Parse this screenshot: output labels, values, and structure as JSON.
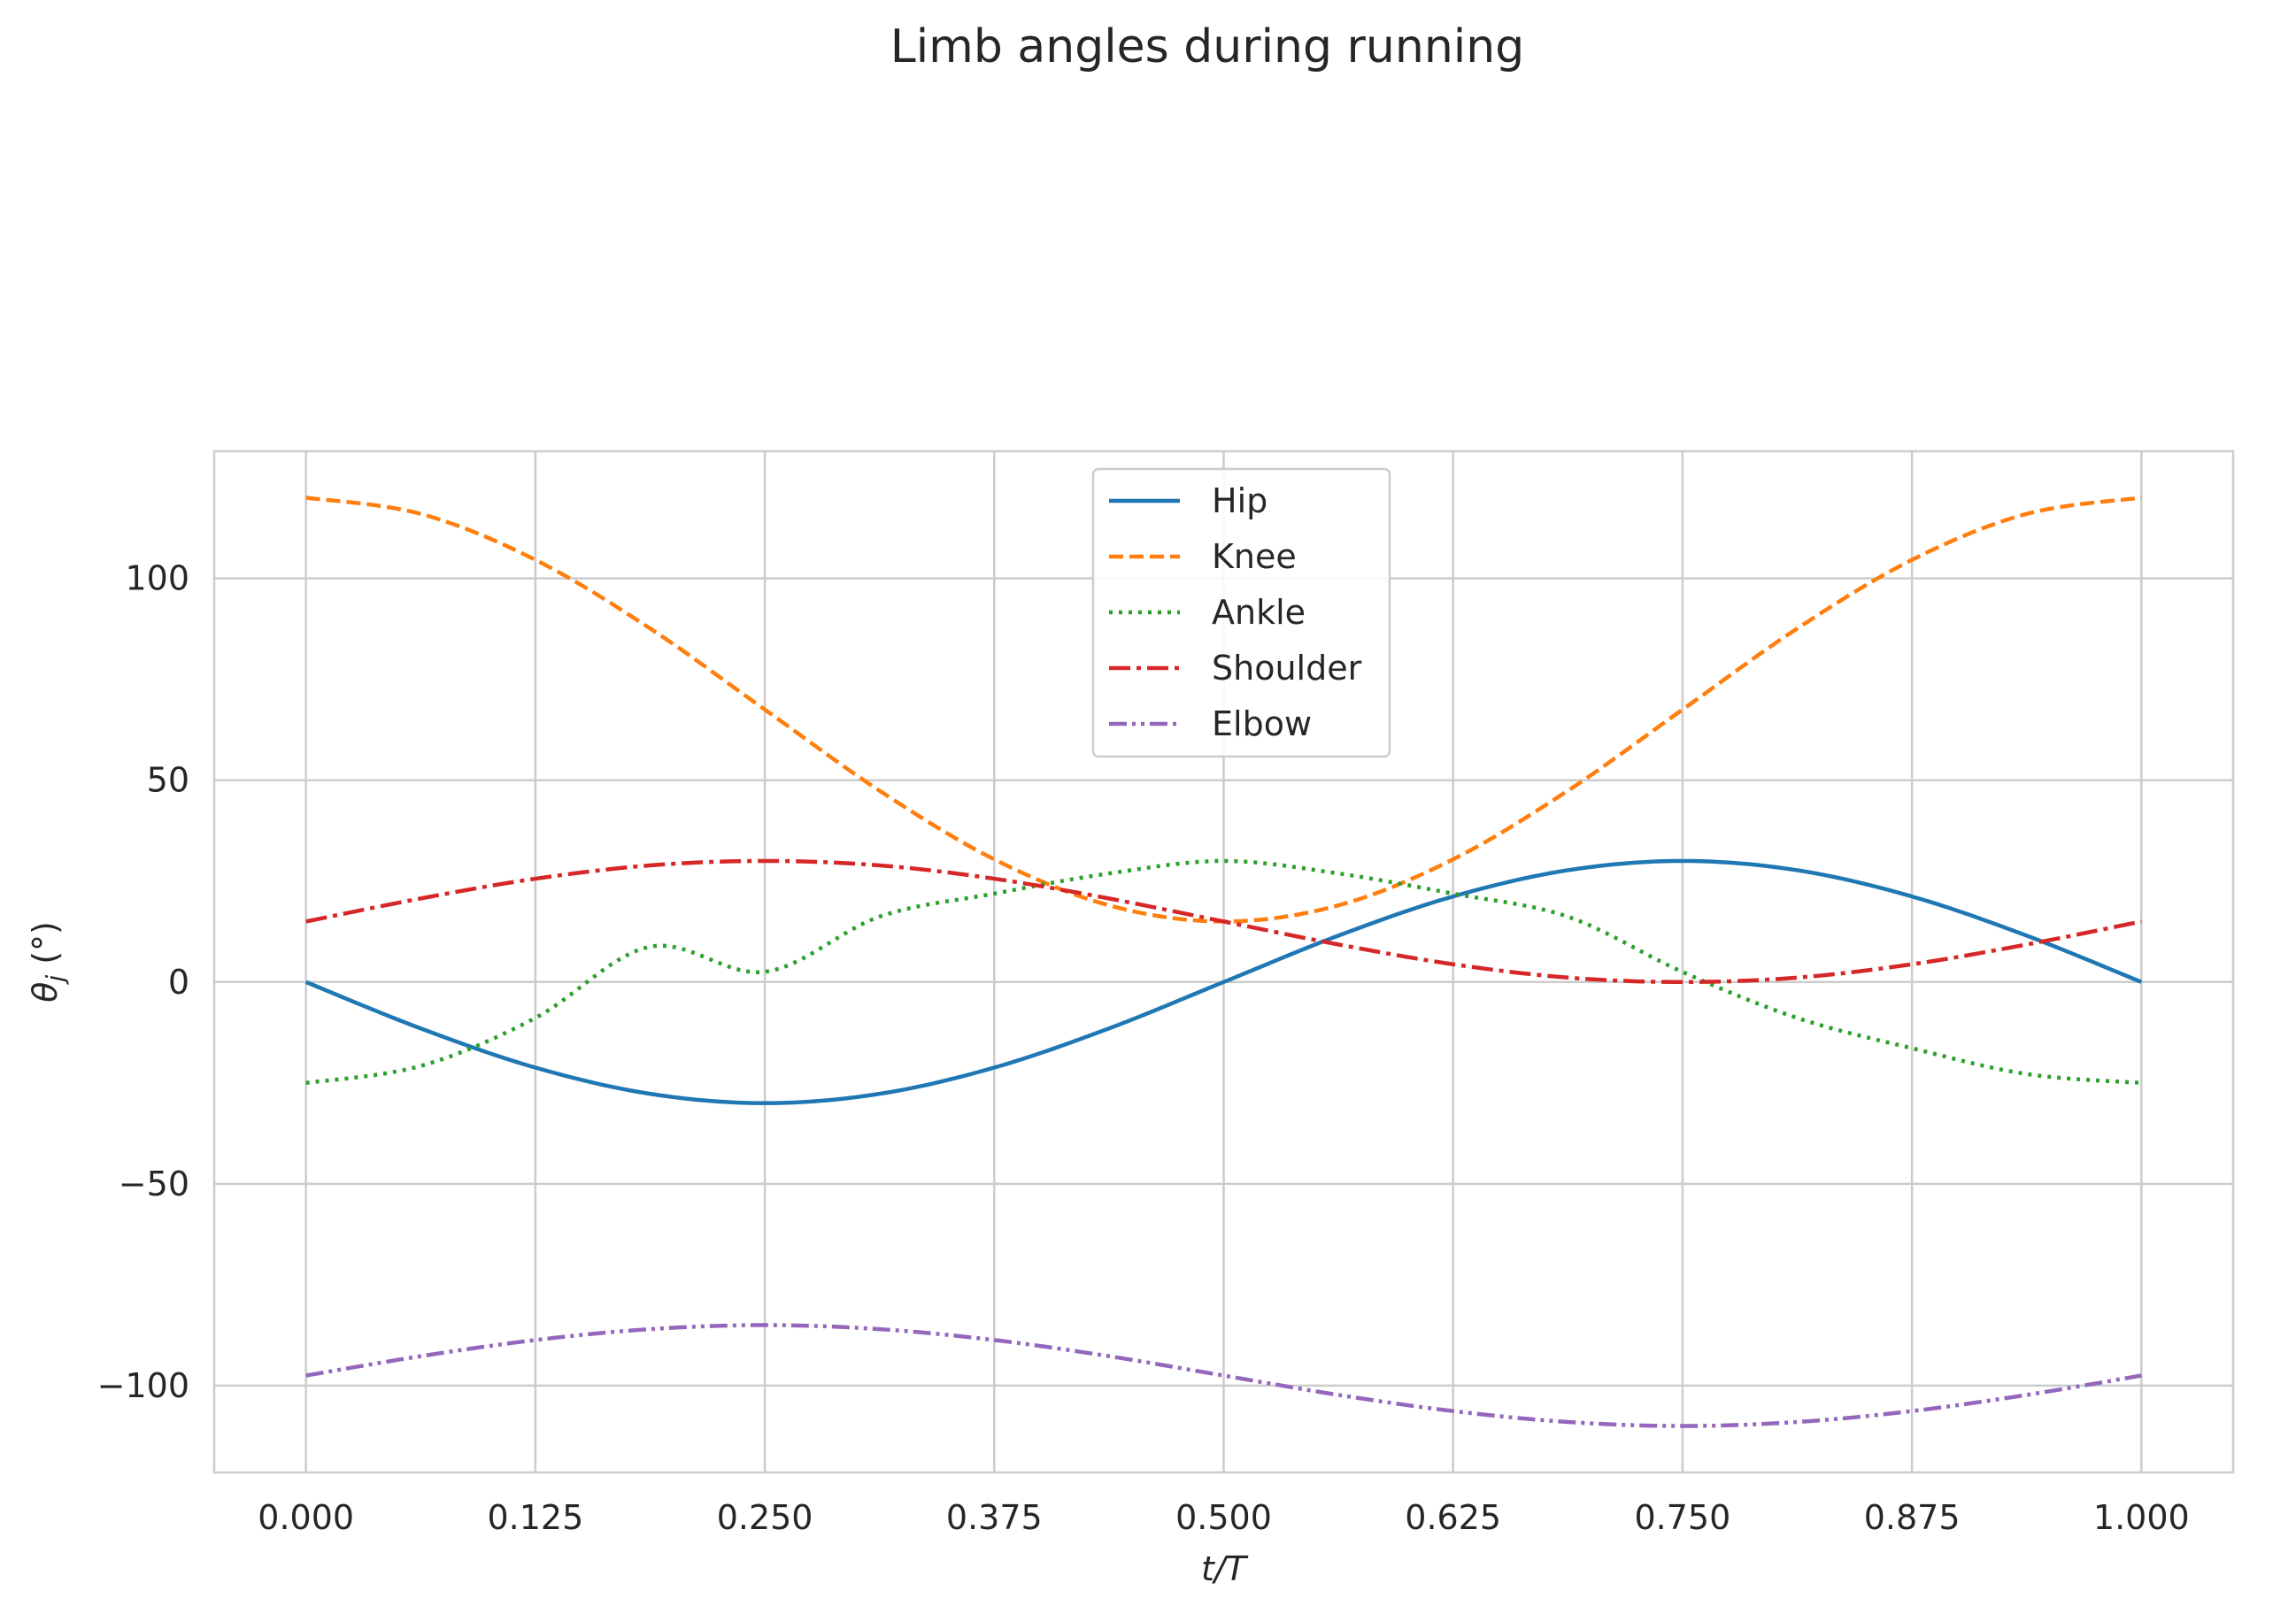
{
  "chart_data": {
    "type": "line",
    "title": "Limb angles during running",
    "xlabel": "t/T",
    "ylabel_main": "θ",
    "ylabel_sub": "j",
    "ylabel_unit": " (°)",
    "xlim": [
      -0.05,
      1.05
    ],
    "ylim": [
      -121.5,
      131.5
    ],
    "xticks": [
      0.0,
      0.125,
      0.25,
      0.375,
      0.5,
      0.625,
      0.75,
      0.875,
      1.0
    ],
    "xtick_labels": [
      "0.000",
      "0.125",
      "0.250",
      "0.375",
      "0.500",
      "0.625",
      "0.750",
      "0.875",
      "1.000"
    ],
    "yticks": [
      -100,
      -50,
      0,
      50,
      100
    ],
    "ytick_labels": [
      "−100",
      "−50",
      "0",
      "50",
      "100"
    ],
    "grid": true,
    "legend_position": "upper-center",
    "x": [
      0.0,
      0.0625,
      0.125,
      0.1875,
      0.25,
      0.3125,
      0.375,
      0.4375,
      0.5,
      0.5625,
      0.625,
      0.6875,
      0.75,
      0.8125,
      0.875,
      0.9375,
      1.0
    ],
    "series": [
      {
        "name": "Hip",
        "color": "#1f77b4",
        "dash": "none",
        "values": [
          0,
          -11.5,
          -21.2,
          -27.7,
          -30,
          -27.7,
          -21.2,
          -11.5,
          0,
          11.5,
          21.2,
          27.7,
          30,
          27.7,
          21.2,
          11.5,
          0
        ]
      },
      {
        "name": "Knee",
        "color": "#ff7f0e",
        "dash": "dashed",
        "values": [
          120,
          116.0,
          104.6,
          87.6,
          67.5,
          47.4,
          30.4,
          19.0,
          15,
          19.0,
          30.4,
          47.4,
          67.5,
          87.6,
          104.6,
          116.0,
          120
        ]
      },
      {
        "name": "Ankle",
        "color": "#2ca02c",
        "dash": "dotted",
        "values": [
          -25,
          -20.8,
          -8.9,
          8.8,
          2.5,
          16.2,
          21.9,
          26.9,
          30,
          26.9,
          21.9,
          16.2,
          2.5,
          -8.9,
          -16.4,
          -22.8,
          -25
        ]
      },
      {
        "name": "Shoulder",
        "color": "#d62728",
        "dash": "dashdot",
        "values": [
          15,
          20.7,
          25.6,
          28.9,
          30,
          28.9,
          25.6,
          20.7,
          15,
          9.3,
          4.4,
          1.1,
          0,
          1.1,
          4.4,
          9.3,
          15
        ]
      },
      {
        "name": "Elbow",
        "color": "#9467bd",
        "dash": "dashdotdot",
        "values": [
          -97.5,
          -92.7,
          -88.7,
          -86.0,
          -85,
          -86.0,
          -88.7,
          -92.7,
          -97.5,
          -102.3,
          -106.3,
          -109.0,
          -110,
          -109.0,
          -106.3,
          -102.3,
          -97.5
        ]
      }
    ]
  }
}
